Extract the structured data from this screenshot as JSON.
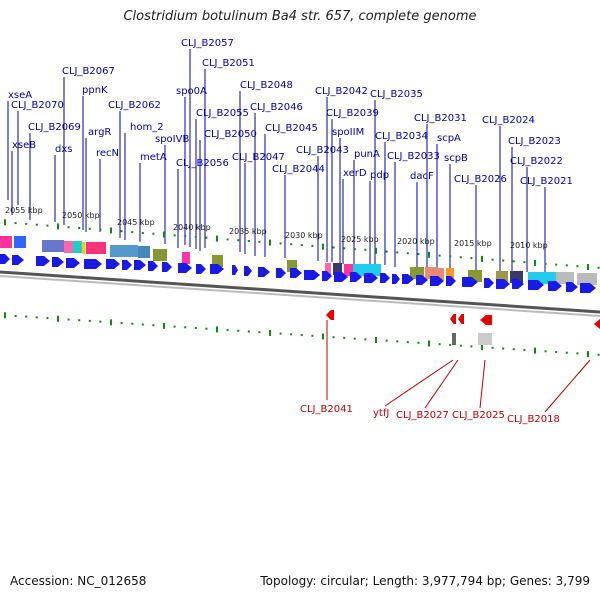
{
  "title": "Clostridium botulinum Ba4 str. 657, complete genome",
  "footer": {
    "accession": "Accession: NC_012658",
    "topology": "Topology: circular; Length: 3,977,794 bp; Genes: 3,799"
  },
  "colors": {
    "forward_gene": "#1a1ae6",
    "reverse_gene": "#e60000",
    "forward_label": "#0000aa",
    "reverse_label": "#bb0000",
    "backbone": "#777777",
    "tick": "#118811"
  },
  "ticks": [
    "2055 kbp",
    "2050 kbp",
    "2045 kbp",
    "2040 kbp",
    "2035 kbp",
    "2030 kbp",
    "2025 kbp",
    "2020 kbp",
    "2015 kbp",
    "2010 kbp"
  ],
  "forward_labels": [
    "xseA",
    "CLJ_B2070",
    "xseB",
    "CLJ_B2069",
    "dxs",
    "CLJ_B2067",
    "ppnK",
    "argR",
    "recN",
    "CLJ_B2062",
    "hom_2",
    "metA",
    "spoIVB",
    "spo0A",
    "CLJ_B2057",
    "CLJ_B2051",
    "CLJ_B2056",
    "CLJ_B2055",
    "CLJ_B2050",
    "CLJ_B2048",
    "CLJ_B2047",
    "CLJ_B2046",
    "CLJ_B2045",
    "CLJ_B2044",
    "CLJ_B2043",
    "CLJ_B2042",
    "CLJ_B2039",
    "spoIIM",
    "xerD",
    "punA",
    "pdp",
    "CLJ_B2035",
    "CLJ_B2034",
    "CLJ_B2033",
    "dacF",
    "CLJ_B2031",
    "scpA",
    "scpB",
    "CLJ_B2026",
    "CLJ_B2024",
    "CLJ_B2023",
    "CLJ_B2022",
    "CLJ_B2021"
  ],
  "reverse_labels": [
    "CLJ_B2041",
    "ytfJ",
    "CLJ_B2027",
    "CLJ_B2025",
    "CLJ_B2018"
  ]
}
